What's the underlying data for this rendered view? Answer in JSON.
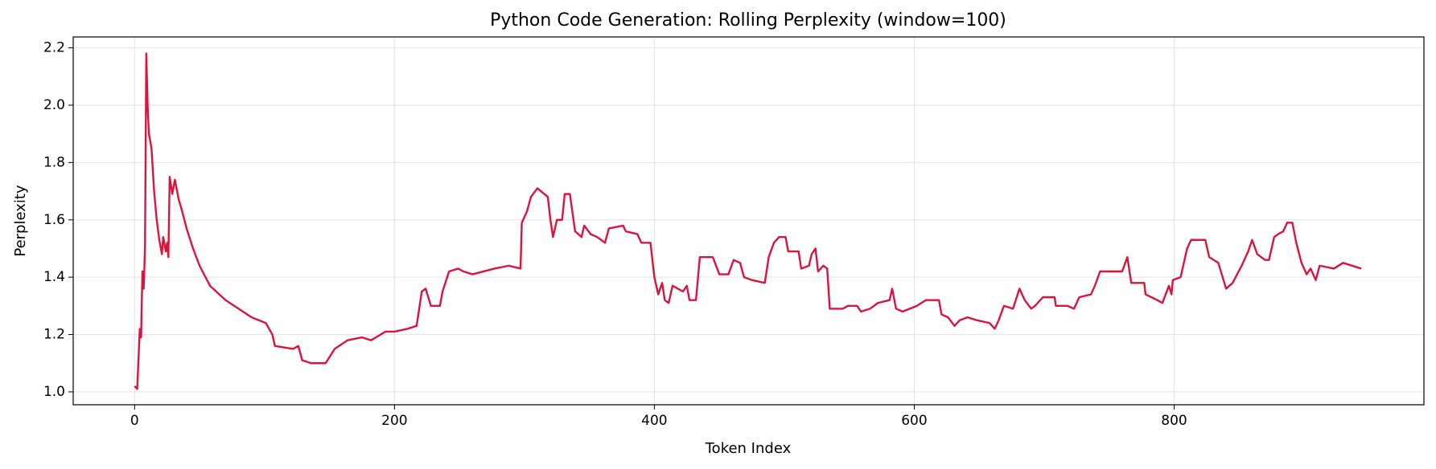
{
  "chart_data": {
    "type": "line",
    "title": "Python Code Generation: Rolling Perplexity (window=100)",
    "xlabel": "Token Index",
    "ylabel": "Perplexity",
    "color": "#dc143c",
    "grid": true,
    "xlim": [
      -47.25,
      992.25
    ],
    "xticks": [
      0,
      200,
      400,
      600,
      800
    ],
    "ylim": [
      0.955,
      2.238
    ],
    "yticks": [
      {
        "value": 1,
        "label": "1.0"
      },
      {
        "value": 1.2,
        "label": "1.2"
      },
      {
        "value": 1.4,
        "label": "1.4"
      },
      {
        "value": 1.6,
        "label": "1.6"
      },
      {
        "value": 1.8,
        "label": "1.8"
      },
      {
        "value": 2,
        "label": "2.0"
      },
      {
        "value": 2.2,
        "label": "2.2"
      }
    ],
    "x": [
      0,
      2,
      4,
      5,
      6,
      7,
      8,
      9,
      10,
      11,
      13,
      15,
      17,
      19,
      21,
      22,
      24,
      25,
      26,
      27,
      29,
      31,
      34,
      36,
      40,
      45,
      50,
      58,
      70,
      80,
      90,
      101,
      106,
      108,
      122,
      126,
      129,
      136,
      147,
      154,
      164,
      175,
      182,
      193,
      200,
      210,
      217,
      221,
      224,
      228,
      235,
      237,
      242,
      249,
      253,
      260,
      277,
      288,
      297,
      298,
      302,
      305,
      310,
      318,
      320,
      322,
      325,
      329,
      331,
      335,
      339,
      344,
      346,
      351,
      356,
      362,
      365,
      376,
      378,
      387,
      390,
      397,
      400,
      403,
      406,
      408,
      411,
      414,
      422,
      425,
      427,
      432,
      435,
      445,
      450,
      457,
      461,
      466,
      469,
      475,
      485,
      488,
      492,
      496,
      501,
      503,
      511,
      513,
      519,
      521,
      524,
      526,
      530,
      533,
      535,
      545,
      549,
      556,
      559,
      566,
      572,
      581,
      583,
      586,
      591,
      602,
      609,
      619,
      621,
      626,
      631,
      635,
      641,
      648,
      658,
      662,
      665,
      669,
      676,
      681,
      685,
      690,
      693,
      699,
      708,
      709,
      718,
      723,
      727,
      736,
      739,
      743,
      753,
      760,
      764,
      767,
      777,
      778,
      787,
      791,
      796,
      798,
      799,
      805,
      810,
      813,
      824,
      827,
      834,
      840,
      845,
      852,
      857,
      860,
      864,
      870,
      873,
      877,
      880,
      884,
      887,
      891,
      894,
      898,
      902,
      905,
      909,
      912,
      923,
      930,
      944
    ],
    "values": [
      1.02,
      1.01,
      1.22,
      1.19,
      1.42,
      1.36,
      1.5,
      2.18,
      2.0,
      1.9,
      1.85,
      1.7,
      1.6,
      1.53,
      1.48,
      1.54,
      1.49,
      1.52,
      1.47,
      1.75,
      1.69,
      1.74,
      1.67,
      1.64,
      1.57,
      1.5,
      1.44,
      1.37,
      1.32,
      1.29,
      1.26,
      1.24,
      1.2,
      1.16,
      1.15,
      1.16,
      1.11,
      1.1,
      1.1,
      1.15,
      1.18,
      1.19,
      1.18,
      1.21,
      1.21,
      1.22,
      1.23,
      1.35,
      1.36,
      1.3,
      1.3,
      1.35,
      1.42,
      1.43,
      1.42,
      1.41,
      1.43,
      1.44,
      1.43,
      1.59,
      1.63,
      1.68,
      1.71,
      1.68,
      1.6,
      1.54,
      1.6,
      1.6,
      1.69,
      1.69,
      1.56,
      1.54,
      1.58,
      1.55,
      1.54,
      1.52,
      1.57,
      1.58,
      1.56,
      1.55,
      1.52,
      1.52,
      1.4,
      1.34,
      1.38,
      1.32,
      1.31,
      1.37,
      1.35,
      1.37,
      1.32,
      1.32,
      1.47,
      1.47,
      1.41,
      1.41,
      1.46,
      1.45,
      1.4,
      1.39,
      1.38,
      1.47,
      1.52,
      1.54,
      1.54,
      1.49,
      1.49,
      1.43,
      1.44,
      1.48,
      1.5,
      1.42,
      1.44,
      1.43,
      1.29,
      1.29,
      1.3,
      1.3,
      1.28,
      1.29,
      1.31,
      1.32,
      1.36,
      1.29,
      1.28,
      1.3,
      1.32,
      1.32,
      1.27,
      1.26,
      1.23,
      1.25,
      1.26,
      1.25,
      1.24,
      1.22,
      1.25,
      1.3,
      1.29,
      1.36,
      1.32,
      1.29,
      1.3,
      1.33,
      1.33,
      1.3,
      1.3,
      1.29,
      1.33,
      1.34,
      1.37,
      1.42,
      1.42,
      1.42,
      1.47,
      1.38,
      1.38,
      1.34,
      1.32,
      1.31,
      1.37,
      1.34,
      1.39,
      1.4,
      1.5,
      1.53,
      1.53,
      1.47,
      1.45,
      1.36,
      1.38,
      1.44,
      1.49,
      1.53,
      1.48,
      1.46,
      1.46,
      1.54,
      1.55,
      1.56,
      1.59,
      1.59,
      1.52,
      1.45,
      1.41,
      1.43,
      1.39,
      1.44,
      1.43,
      1.45,
      1.43
    ]
  }
}
